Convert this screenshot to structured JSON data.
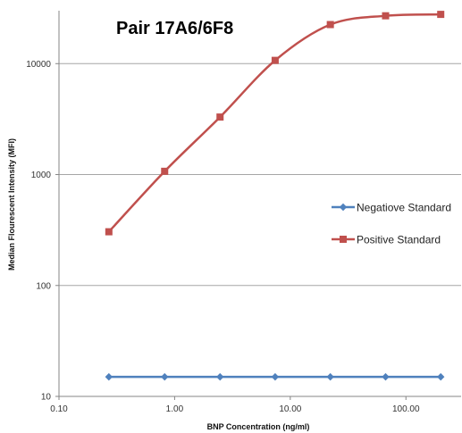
{
  "chart_data": {
    "type": "line",
    "title": "Pair 17A6/6F8",
    "xlabel": "BNP Concentration (ng/ml)",
    "ylabel": "Median Flourescent Intensity (MFI)",
    "x_scale": "log",
    "y_scale": "log",
    "xlim": [
      0.1,
      300
    ],
    "ylim": [
      10,
      30000
    ],
    "x_ticks": [
      0.1,
      1,
      10,
      100
    ],
    "x_tick_labels": [
      "0.10",
      "1.00",
      "10.00",
      "100.00"
    ],
    "y_ticks": [
      10,
      100,
      1000,
      10000
    ],
    "y_tick_labels": [
      "10",
      "100",
      "1000",
      "10000"
    ],
    "grid": "horizontal",
    "legend_position": "right",
    "x": [
      0.27,
      0.82,
      2.47,
      7.4,
      22.2,
      66.7,
      200
    ],
    "series": [
      {
        "name": "Negatiove Standard",
        "color": "#4f81bd",
        "marker": "diamond",
        "values": [
          15,
          15,
          15,
          15,
          15,
          15,
          15
        ]
      },
      {
        "name": "Positive Standard",
        "color": "#c0504d",
        "marker": "square",
        "values": [
          305,
          1070,
          3300,
          10700,
          22500,
          27000,
          27800
        ]
      }
    ]
  }
}
